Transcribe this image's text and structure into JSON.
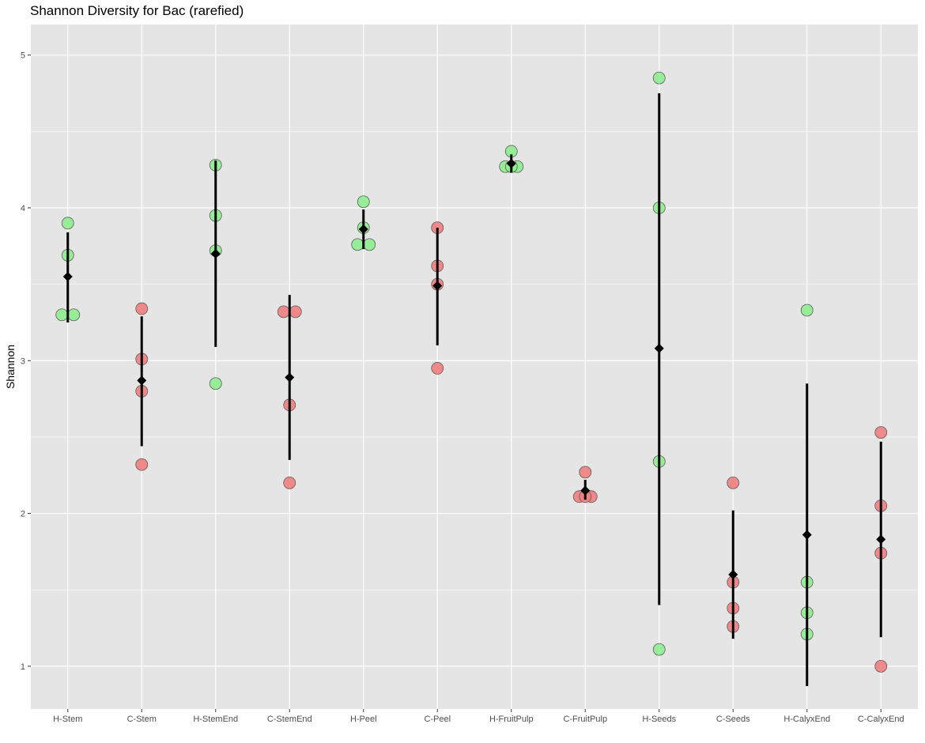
{
  "chart_data": {
    "type": "scatter",
    "title": "Shannon Diversity for Bac (rarefied)",
    "xlabel": "",
    "ylabel": "Shannon",
    "ylim": [
      0.72,
      5.2
    ],
    "y_ticks": [
      1,
      2,
      3,
      4,
      5
    ],
    "grid": true,
    "legend": "none",
    "colors": {
      "H": "#90ee90",
      "C": "#f08080",
      "summary": "#000000",
      "panel": "#e5e5e5",
      "grid": "#ffffff"
    },
    "categories": [
      "H-Stem",
      "C-Stem",
      "H-StemEnd",
      "C-StemEnd",
      "H-Peel",
      "C-Peel",
      "H-FruitPulp",
      "C-FruitPulp",
      "H-Seeds",
      "C-Seeds",
      "H-CalyxEnd",
      "C-CalyxEnd"
    ],
    "groups": [
      {
        "category": "H-Stem",
        "type": "H",
        "points": [
          3.9,
          3.69,
          3.3,
          3.3
        ],
        "mean": 3.55,
        "lower": 3.25,
        "upper": 3.84
      },
      {
        "category": "C-Stem",
        "type": "C",
        "points": [
          3.34,
          3.01,
          2.8,
          2.32
        ],
        "mean": 2.87,
        "lower": 2.44,
        "upper": 3.29
      },
      {
        "category": "H-StemEnd",
        "type": "H",
        "points": [
          4.28,
          3.95,
          3.72,
          2.85
        ],
        "mean": 3.7,
        "lower": 3.09,
        "upper": 4.31
      },
      {
        "category": "C-StemEnd",
        "type": "C",
        "points": [
          3.32,
          3.32,
          2.71,
          2.2
        ],
        "mean": 2.89,
        "lower": 2.35,
        "upper": 3.43
      },
      {
        "category": "H-Peel",
        "type": "H",
        "points": [
          4.04,
          3.87,
          3.76,
          3.76
        ],
        "mean": 3.86,
        "lower": 3.73,
        "upper": 3.99
      },
      {
        "category": "C-Peel",
        "type": "C",
        "points": [
          3.87,
          3.62,
          3.5,
          2.95
        ],
        "mean": 3.49,
        "lower": 3.1,
        "upper": 3.87
      },
      {
        "category": "H-FruitPulp",
        "type": "H",
        "points": [
          4.37,
          4.27,
          4.27,
          4.27
        ],
        "mean": 4.29,
        "lower": 4.23,
        "upper": 4.35
      },
      {
        "category": "C-FruitPulp",
        "type": "C",
        "points": [
          2.27,
          2.11,
          2.11,
          2.11
        ],
        "mean": 2.15,
        "lower": 2.09,
        "upper": 2.22
      },
      {
        "category": "H-Seeds",
        "type": "H",
        "points": [
          4.85,
          4.0,
          2.34,
          1.11
        ],
        "mean": 3.08,
        "lower": 1.4,
        "upper": 4.75
      },
      {
        "category": "C-Seeds",
        "type": "C",
        "points": [
          2.2,
          1.55,
          1.38,
          1.26
        ],
        "mean": 1.6,
        "lower": 1.18,
        "upper": 2.02
      },
      {
        "category": "H-CalyxEnd",
        "type": "H",
        "points": [
          3.33,
          1.55,
          1.35,
          1.21
        ],
        "mean": 1.86,
        "lower": 0.87,
        "upper": 2.85
      },
      {
        "category": "C-CalyxEnd",
        "type": "C",
        "points": [
          2.53,
          2.05,
          1.74,
          1.0
        ],
        "mean": 1.83,
        "lower": 1.19,
        "upper": 2.47
      }
    ]
  }
}
